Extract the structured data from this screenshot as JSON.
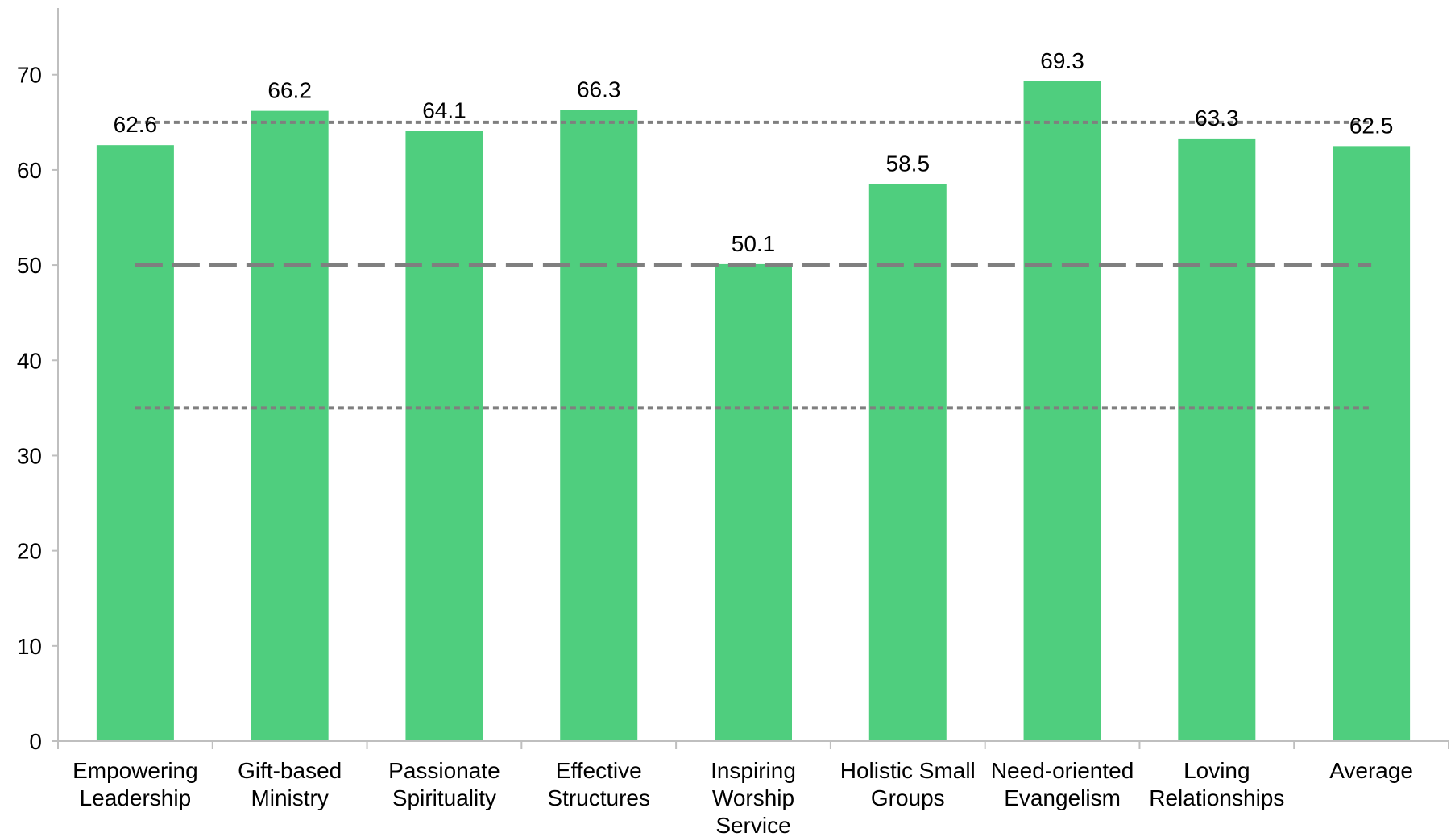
{
  "chart_data": {
    "type": "bar",
    "categories": [
      [
        "Empowering",
        "Leadership"
      ],
      [
        "Gift-based",
        "Ministry"
      ],
      [
        "Passionate",
        "Spirituality"
      ],
      [
        "Effective",
        "Structures"
      ],
      [
        "Inspiring",
        "Worship",
        "Service"
      ],
      [
        "Holistic Small",
        "Groups"
      ],
      [
        "Need-oriented",
        "Evangelism"
      ],
      [
        "Loving",
        "Relationships"
      ],
      [
        "Average"
      ]
    ],
    "values": [
      62.6,
      66.2,
      64.1,
      66.3,
      50.1,
      58.5,
      69.3,
      63.3,
      62.5
    ],
    "data_labels": [
      "62.6",
      "66.2",
      "64.1",
      "66.3",
      "50.1",
      "58.5",
      "69.3",
      "63.3",
      "62.5"
    ],
    "ylim": [
      0,
      77
    ],
    "yticks": [
      0,
      10,
      20,
      30,
      40,
      50,
      60,
      70
    ],
    "reference_lines": [
      {
        "value": 65,
        "style": "dotted"
      },
      {
        "value": 50,
        "style": "dashed"
      },
      {
        "value": 35,
        "style": "dotted"
      }
    ],
    "title": "",
    "xlabel": "",
    "ylabel": "",
    "grid": false,
    "legend": "none",
    "colors": {
      "bar": "#4fce7e",
      "reference_line": "#7f7f7f",
      "axis": "#bfbfbf",
      "text": "#000000"
    }
  }
}
